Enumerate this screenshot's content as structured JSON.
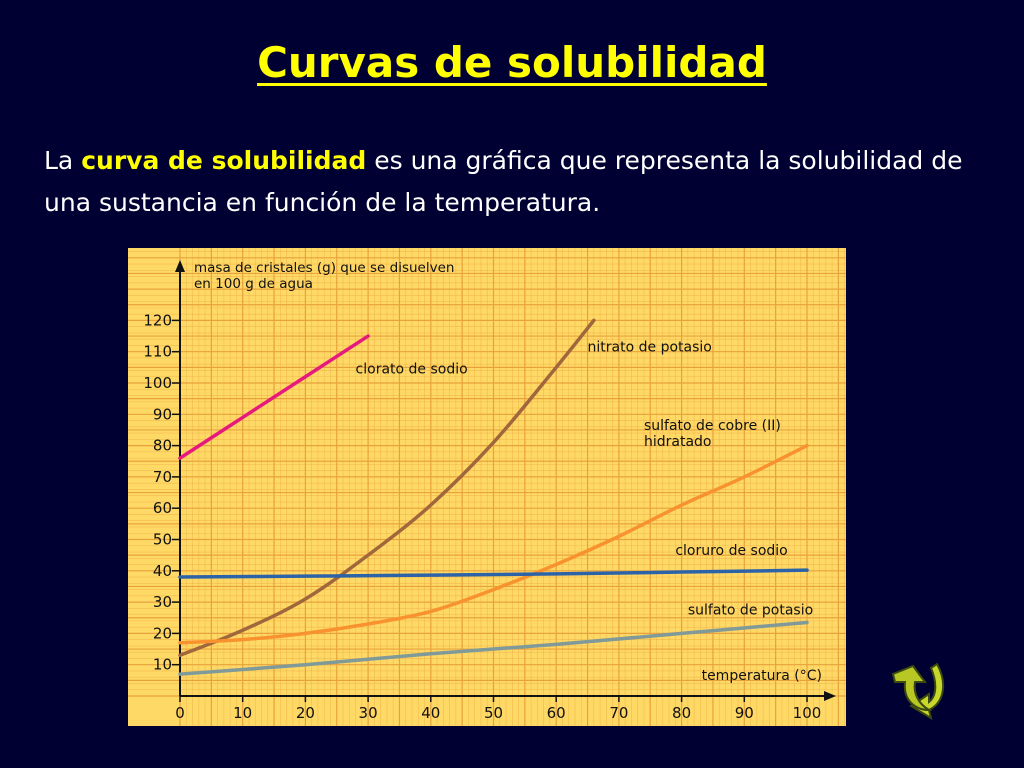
{
  "slide": {
    "title": "Curvas de solubilidad",
    "intro_before": "La ",
    "intro_highlight": "curva de solubilidad",
    "intro_after": " es una gráfica que representa la solubilidad de una sustancia en función de la temperatura."
  },
  "colors": {
    "background": "#000033",
    "title": "#ffff00",
    "grid_bg": "#ffd966",
    "grid_line": "#e8a23c",
    "clorato_de_sodio": "#e6197d",
    "nitrato_de_potasio": "#a0663c",
    "sulfato_de_cobre": "#f7922f",
    "cloruro_de_sodio": "#2c63a8",
    "sulfato_de_potasio": "#7f9a98"
  },
  "navigation": {
    "next_icon": "curved-arrow-down-icon"
  },
  "chart_data": {
    "type": "line",
    "ylabel_line1": "masa de cristales (g) que se disuelven",
    "ylabel_line2": "en 100 g de agua",
    "xlabel": "temperatura (°C)",
    "xlim": [
      0,
      100
    ],
    "ylim": [
      0,
      125
    ],
    "x_ticks": [
      "0",
      "10",
      "20",
      "30",
      "40",
      "50",
      "60",
      "70",
      "80",
      "90",
      "100"
    ],
    "y_ticks": [
      "10",
      "20",
      "30",
      "40",
      "50",
      "60",
      "70",
      "80",
      "90",
      "100",
      "110",
      "120"
    ],
    "grid": true,
    "series": [
      {
        "name": "clorato de sodio",
        "color": "#e6197d",
        "label_lines": [
          "clorato de sodio"
        ],
        "x": [
          0,
          10,
          20,
          30
        ],
        "y": [
          76,
          89,
          102,
          115
        ]
      },
      {
        "name": "nitrato de potasio",
        "color": "#a0663c",
        "label_lines": [
          "nitrato de potasio"
        ],
        "x": [
          0,
          10,
          20,
          30,
          40,
          50,
          60,
          66
        ],
        "y": [
          13,
          21,
          31,
          45,
          61,
          81,
          105,
          120
        ]
      },
      {
        "name": "sulfato de cobre (II) hidratado",
        "color": "#f7922f",
        "label_lines": [
          "sulfato de cobre (II)",
          "hidratado"
        ],
        "x": [
          0,
          10,
          20,
          30,
          40,
          50,
          60,
          70,
          80,
          90,
          100
        ],
        "y": [
          17,
          18,
          20,
          23,
          27,
          34,
          42,
          51,
          61,
          70,
          80
        ]
      },
      {
        "name": "cloruro de sodio",
        "color": "#2c63a8",
        "label_lines": [
          "cloruro de sodio"
        ],
        "x": [
          0,
          20,
          40,
          60,
          80,
          100
        ],
        "y": [
          38,
          38.3,
          38.6,
          39,
          39.6,
          40.2
        ]
      },
      {
        "name": "sulfato de potasio",
        "color": "#7f9a98",
        "label_lines": [
          "sulfato de potasio"
        ],
        "x": [
          0,
          20,
          40,
          60,
          80,
          100
        ],
        "y": [
          7,
          10,
          13.5,
          16.5,
          20,
          23.5
        ]
      }
    ]
  }
}
